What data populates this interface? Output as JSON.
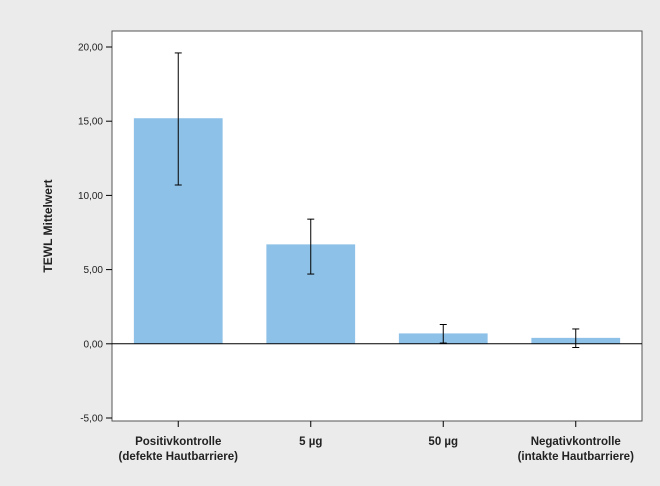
{
  "chart_data": {
    "type": "bar",
    "title": "",
    "xlabel": "",
    "ylabel": "TEWL Mittelwert",
    "ylim": [
      -5,
      20
    ],
    "yticks": [
      "-5,00",
      "0,00",
      "5,00",
      "10,00",
      "15,00",
      "20,00"
    ],
    "ytick_values": [
      -5,
      0,
      5,
      10,
      15,
      20
    ],
    "categories": [
      [
        "Positivkontrolle",
        "(defekte Hautbarriere)"
      ],
      [
        "5 µg"
      ],
      [
        "50 µg"
      ],
      [
        "Negativkontrolle",
        "(intakte Hautbarriere)"
      ]
    ],
    "values": [
      15.2,
      6.7,
      0.7,
      0.4
    ],
    "error_low": [
      10.7,
      4.7,
      0.05,
      -0.25
    ],
    "error_high": [
      19.6,
      8.4,
      1.3,
      1.0
    ],
    "grid": false,
    "colors": {
      "bar": "#8ec1e8",
      "background": "#ebebeb",
      "plot_area": "#ffffff",
      "axis": "#000000"
    }
  }
}
